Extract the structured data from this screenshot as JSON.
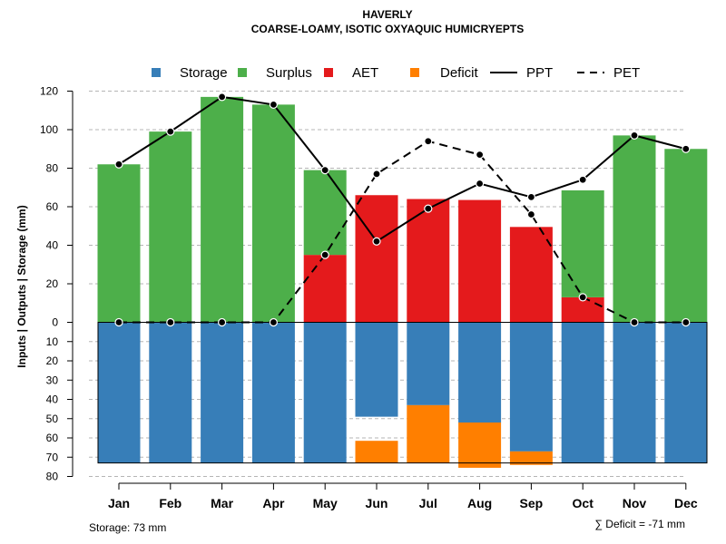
{
  "chart_data": {
    "type": "bar",
    "title": "HAVERLY",
    "subtitle": "COARSE-LOAMY, ISOTIC OXYAQUIC HUMICRYEPTS",
    "ylabel": "Inputs | Outputs | Storage     (mm)",
    "categories": [
      "Jan",
      "Feb",
      "Mar",
      "Apr",
      "May",
      "Jun",
      "Jul",
      "Aug",
      "Sep",
      "Oct",
      "Nov",
      "Dec"
    ],
    "ylim": [
      -80,
      120
    ],
    "upper_ticks": [
      "0",
      "20",
      "40",
      "60",
      "80",
      "100",
      "120"
    ],
    "lower_ticks": [
      "10",
      "20",
      "30",
      "40",
      "50",
      "60",
      "70",
      "80"
    ],
    "legend": [
      {
        "key": "storage",
        "label": "Storage",
        "color": "#377EB8",
        "kind": "box"
      },
      {
        "key": "surplus",
        "label": "Surplus",
        "color": "#4DAF4A",
        "kind": "box"
      },
      {
        "key": "aet",
        "label": "AET",
        "color": "#E41A1C",
        "kind": "box"
      },
      {
        "key": "deficit",
        "label": "Deficit",
        "color": "#FF7F00",
        "kind": "box"
      },
      {
        "key": "ppt",
        "label": "PPT",
        "color": "#000000",
        "kind": "solid"
      },
      {
        "key": "pet",
        "label": "PET",
        "color": "#000000",
        "kind": "dashed"
      }
    ],
    "series": [
      {
        "name": "AET",
        "color": "#E41A1C",
        "values": [
          0,
          0,
          0,
          0,
          35,
          66,
          64,
          63.5,
          49.5,
          13,
          0,
          0
        ]
      },
      {
        "name": "Surplus",
        "color": "#4DAF4A",
        "values": [
          82,
          99,
          117,
          113,
          44,
          0,
          0,
          0,
          0,
          55.5,
          97,
          90
        ]
      },
      {
        "name": "Storage",
        "color": "#377EB8",
        "values": [
          73,
          73,
          73,
          73,
          73,
          49,
          43,
          52,
          67,
          73,
          73,
          73
        ]
      },
      {
        "name": "Deficit",
        "color": "#FF7F00",
        "values": [
          0,
          0,
          0,
          0,
          0,
          11.5,
          30,
          23.5,
          7,
          0,
          0,
          0
        ]
      },
      {
        "name": "PPT",
        "color": "#000000",
        "values": [
          82,
          99,
          117,
          113,
          79,
          42,
          59,
          72,
          65,
          74,
          97,
          90
        ]
      },
      {
        "name": "PET",
        "color": "#000000",
        "values": [
          0,
          0,
          0,
          0,
          35,
          77,
          94,
          87,
          56,
          13,
          0,
          0
        ]
      }
    ],
    "storage_capacity": 73,
    "footer_left": "Storage: 73 mm",
    "footer_right": "∑ Deficit = -71 mm"
  }
}
